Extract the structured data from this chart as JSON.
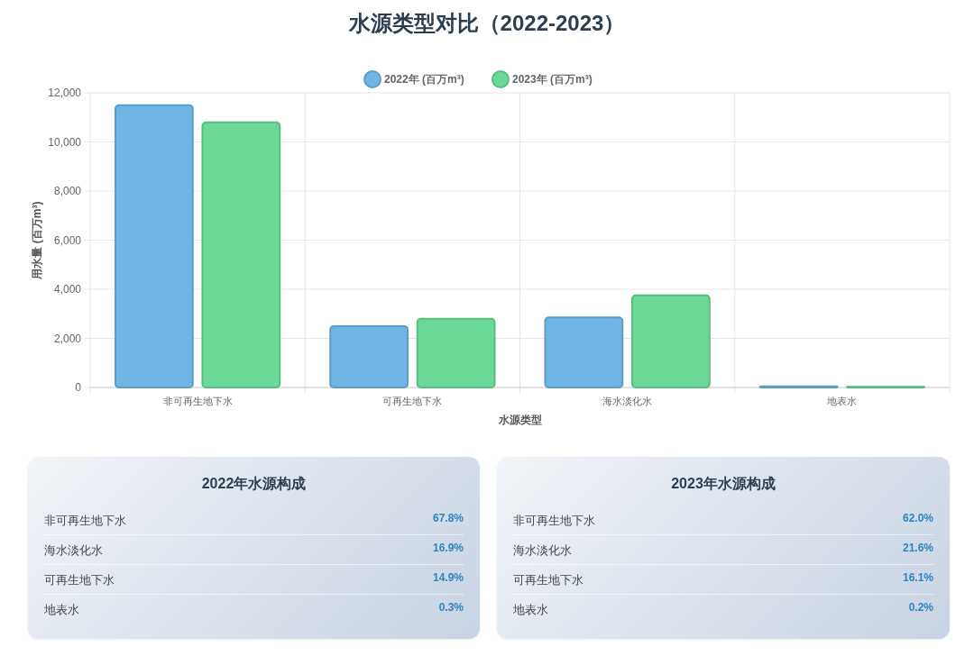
{
  "chart_data": [
    {
      "type": "bar",
      "title": "水源类型对比（2022-2023）",
      "xlabel": "水源类型",
      "ylabel": "用水量 (百万m³)",
      "categories": [
        "非可再生地下水",
        "可再生地下水",
        "海水淡化水",
        "地表水"
      ],
      "series": [
        {
          "name": "2022年 (百万m³)",
          "color": "#6fb5e5",
          "values": [
            11500,
            2500,
            2850,
            50
          ]
        },
        {
          "name": "2023年 (百万m³)",
          "color": "#6bd897",
          "values": [
            10800,
            2800,
            3750,
            30
          ]
        }
      ],
      "ylim": [
        0,
        12000
      ],
      "yticks": [
        0,
        {
          "value": 2000,
          "label": "2,000"
        },
        {
          "value": 4000,
          "label": "4,000"
        },
        {
          "value": 6000,
          "label": "6,000"
        },
        {
          "value": 8000,
          "label": "8,000"
        },
        {
          "value": 10000,
          "label": "10,000"
        },
        {
          "value": 12000,
          "label": "12,000"
        }
      ],
      "grid": true,
      "legend": "top"
    },
    {
      "type": "other",
      "title": "2022年水源构成",
      "categories": [
        "非可再生地下水",
        "海水淡化水",
        "可再生地下水",
        "地表水"
      ],
      "value_labels": [
        "67.8%",
        "16.9%",
        "14.9%",
        "0.3%"
      ]
    },
    {
      "type": "other",
      "title": "2023年水源构成",
      "categories": [
        "非可再生地下水",
        "海水淡化水",
        "可再生地下水",
        "地表水"
      ],
      "value_labels": [
        "62.0%",
        "21.6%",
        "16.1%",
        "0.2%"
      ]
    }
  ]
}
